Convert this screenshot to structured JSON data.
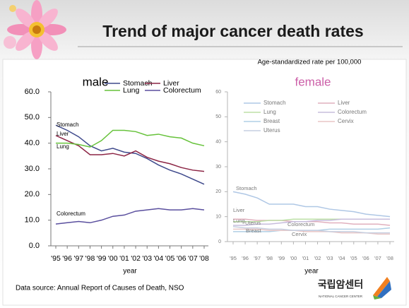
{
  "slide": {
    "title": "Trend of major cancer death rates",
    "subtitle": "Age-standardized rate per 100,000",
    "source": "Data source: Annual Report of Causes of Death, NSO",
    "logo": "국립암센터",
    "logo_caption": "NATIONAL CANCER CENTER"
  },
  "chart_data": [
    {
      "type": "line",
      "title": "male",
      "title_color": "#000000",
      "x_label": "year",
      "categories": [
        "'95",
        "'96",
        "'97",
        "'98",
        "'99",
        "'00",
        "'01",
        "'02",
        "'03",
        "'04",
        "'05",
        "'06",
        "'07",
        "'08"
      ],
      "ylim": [
        0,
        60
      ],
      "yticks": [
        {
          "value": 0,
          "label": "0.0"
        },
        {
          "value": 10,
          "label": "10.0"
        },
        {
          "value": 20,
          "label": "20.0"
        },
        {
          "value": 30,
          "label": "30.0"
        },
        {
          "value": 40,
          "label": "40.0"
        },
        {
          "value": 50,
          "label": "50.0"
        },
        {
          "value": 60,
          "label": "60.0"
        }
      ],
      "series": [
        {
          "name": "Stomach",
          "color": "#3f4a8c",
          "values": [
            47,
            45,
            42.5,
            39,
            37,
            38,
            36.5,
            36,
            34,
            31.5,
            29.5,
            28,
            26,
            24
          ]
        },
        {
          "name": "Liver",
          "color": "#8c2545",
          "values": [
            43,
            41,
            39,
            35.5,
            35.5,
            36,
            35,
            37,
            34.5,
            33,
            32,
            30.5,
            29.5,
            29
          ]
        },
        {
          "name": "Lung",
          "color": "#66c23a",
          "values": [
            40,
            40,
            39.5,
            38.5,
            41,
            45,
            45,
            44.5,
            43,
            43.5,
            42.5,
            42,
            40,
            39
          ]
        },
        {
          "name": "Colorectum",
          "color": "#5a4f9e",
          "values": [
            8.5,
            9,
            9.5,
            9,
            10,
            11.5,
            12,
            13.5,
            14,
            14.5,
            14,
            14,
            14.5,
            14
          ]
        }
      ]
    },
    {
      "type": "line",
      "title": "female",
      "title_color": "#cc5fa8",
      "x_label": "year",
      "categories": [
        "'95",
        "'96",
        "'97",
        "'98",
        "'99",
        "'00",
        "'01",
        "'02",
        "'03",
        "'04",
        "'05",
        "'06",
        "'07",
        "'08"
      ],
      "ylim": [
        0,
        60
      ],
      "yticks": [
        0,
        10,
        20,
        30,
        40,
        50,
        60
      ],
      "series": [
        {
          "name": "Stomach",
          "color": "#6f9bd0",
          "values": [
            20,
            19,
            17.5,
            15,
            15,
            15,
            14,
            14,
            13,
            12.5,
            12,
            11,
            10.5,
            10
          ]
        },
        {
          "name": "Liver",
          "color": "#c9708a",
          "values": [
            9,
            9,
            8.5,
            8.5,
            8.5,
            8,
            8,
            8,
            7.5,
            7.5,
            7,
            7,
            7,
            6.5
          ]
        },
        {
          "name": "Lung",
          "color": "#88c860",
          "values": [
            8,
            8,
            8,
            8.5,
            8.5,
            9,
            9,
            9,
            9,
            9,
            9,
            9,
            9,
            9
          ]
        },
        {
          "name": "Colorectum",
          "color": "#9a88c0",
          "values": [
            6.5,
            6.5,
            7,
            7,
            7.5,
            8,
            8,
            8.5,
            8.5,
            9,
            9,
            9,
            9,
            9
          ]
        },
        {
          "name": "Breast",
          "color": "#70a8d0",
          "values": [
            4,
            4,
            4,
            4,
            4.5,
            4.5,
            4.5,
            4.5,
            5,
            5,
            5,
            5,
            5,
            5.5
          ]
        },
        {
          "name": "Cervix",
          "color": "#d89898",
          "values": [
            5,
            5,
            5,
            4.5,
            4.5,
            4.5,
            4,
            4,
            4,
            3.5,
            3.5,
            3.5,
            3,
            3
          ]
        },
        {
          "name": "Uterus",
          "color": "#98a8c8",
          "values": [
            6,
            5.5,
            5.5,
            5,
            5,
            4.5,
            4.5,
            4.5,
            4,
            4,
            4,
            3.5,
            3.5,
            3.5
          ]
        }
      ]
    }
  ]
}
